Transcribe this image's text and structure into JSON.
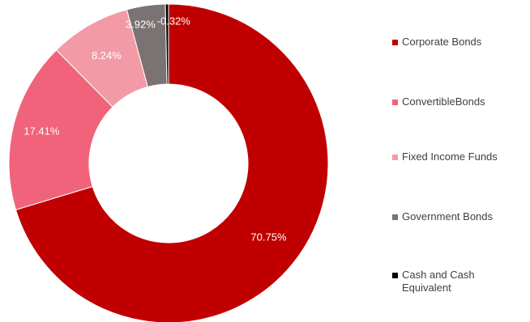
{
  "chart_data": {
    "type": "pie",
    "donut": true,
    "categories": [
      "Corporate Bonds",
      "ConvertibleBonds",
      "Fixed Income Funds",
      "Government Bonds",
      "Cash and Cash Equivalent"
    ],
    "values": [
      70.75,
      17.41,
      8.24,
      3.92,
      -0.32
    ],
    "labels": [
      "70.75%",
      "17.41%",
      "8.24%",
      "3.92%",
      "-0.32%"
    ],
    "colors": [
      "#c00000",
      "#f0637a",
      "#f29ba6",
      "#7b7373",
      "#000000"
    ],
    "legend_position": "right"
  }
}
